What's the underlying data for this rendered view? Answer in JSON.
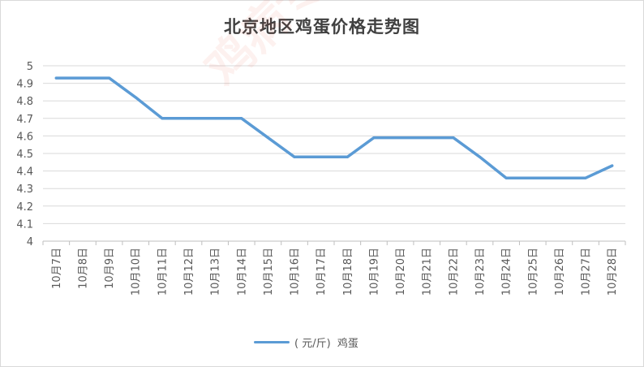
{
  "chart_data": {
    "type": "line",
    "title": "北京地区鸡蛋价格走势图",
    "xlabel": "",
    "ylabel": "",
    "categories": [
      "10月7日",
      "10月8日",
      "10月9日",
      "10月10日",
      "10月11日",
      "10月12日",
      "10月13日",
      "10月14日",
      "10月15日",
      "10月16日",
      "10月17日",
      "10月18日",
      "10月19日",
      "10月20日",
      "10月21日",
      "10月22日",
      "10月23日",
      "10月24日",
      "10月25日",
      "10月26日",
      "10月27日",
      "10月28日"
    ],
    "series": [
      {
        "name": "( 元/斤)  鸡蛋",
        "color": "#5b9bd5",
        "values": [
          4.93,
          4.93,
          4.93,
          4.82,
          4.7,
          4.7,
          4.7,
          4.7,
          4.59,
          4.48,
          4.48,
          4.48,
          4.59,
          4.59,
          4.59,
          4.59,
          4.48,
          4.36,
          4.36,
          4.36,
          4.36,
          4.43
        ]
      }
    ],
    "yticks": [
      "4",
      "4.1",
      "4.2",
      "4.3",
      "4.4",
      "4.5",
      "4.6",
      "4.7",
      "4.8",
      "4.9",
      "5"
    ],
    "ylim": [
      4,
      5
    ],
    "grid": true,
    "legend_position": "bottom"
  },
  "watermark": {
    "text": "鸡病专业网 www.jbzyw.com"
  }
}
